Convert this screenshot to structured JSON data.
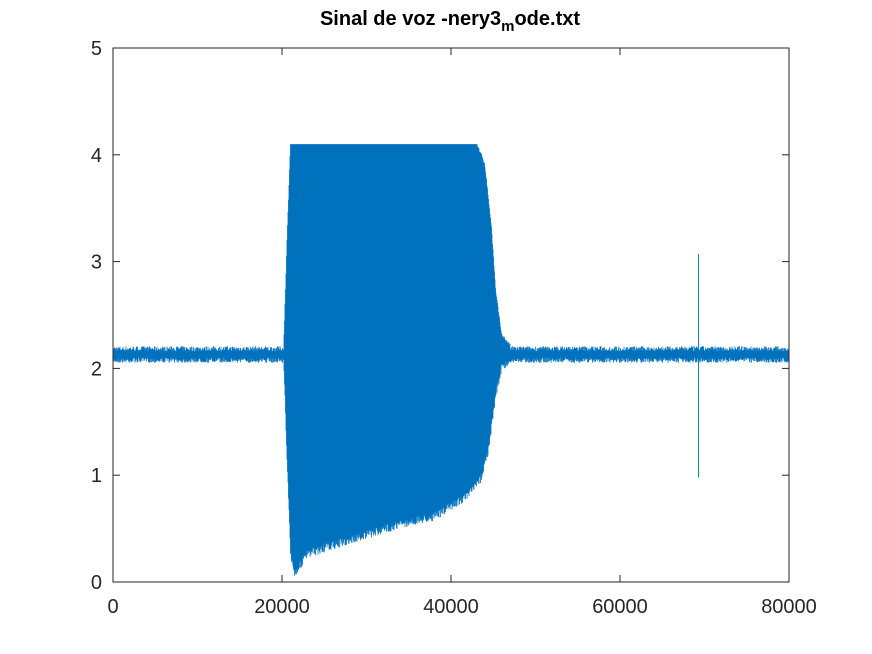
{
  "chart_data": {
    "type": "line",
    "title": "Sinal de voz -nery3",
    "title_subscript": "m",
    "title_suffix": "ode.txt",
    "xlabel": "",
    "ylabel": "",
    "xlim": [
      0,
      80000
    ],
    "ylim": [
      0,
      5
    ],
    "xticks": [
      0,
      20000,
      40000,
      60000,
      80000
    ],
    "yticks": [
      0,
      1,
      2,
      3,
      4,
      5
    ],
    "grid": false,
    "series_color": "#0072BD",
    "baseline": 2.13,
    "noise_amplitude": 0.06,
    "clip_max": 4.1,
    "envelope_lower": [
      {
        "x": 20200,
        "y": 2.1
      },
      {
        "x": 20600,
        "y": 1.2
      },
      {
        "x": 21000,
        "y": 0.3
      },
      {
        "x": 21500,
        "y": 0.12
      },
      {
        "x": 23000,
        "y": 0.3
      },
      {
        "x": 26000,
        "y": 0.38
      },
      {
        "x": 30000,
        "y": 0.48
      },
      {
        "x": 34000,
        "y": 0.58
      },
      {
        "x": 38000,
        "y": 0.65
      },
      {
        "x": 42000,
        "y": 0.85
      },
      {
        "x": 43500,
        "y": 1.0
      },
      {
        "x": 44500,
        "y": 1.3
      },
      {
        "x": 45300,
        "y": 1.8
      },
      {
        "x": 46000,
        "y": 2.05
      },
      {
        "x": 47000,
        "y": 2.1
      }
    ],
    "envelope_upper": [
      {
        "x": 20200,
        "y": 2.2
      },
      {
        "x": 20600,
        "y": 3.2
      },
      {
        "x": 21000,
        "y": 4.1
      },
      {
        "x": 43000,
        "y": 4.1
      },
      {
        "x": 44000,
        "y": 3.9
      },
      {
        "x": 44800,
        "y": 3.3
      },
      {
        "x": 45300,
        "y": 2.7
      },
      {
        "x": 46000,
        "y": 2.3
      },
      {
        "x": 47000,
        "y": 2.2
      }
    ],
    "spike": {
      "x": 69300,
      "ymin": 0.98,
      "ymax": 3.07
    }
  }
}
